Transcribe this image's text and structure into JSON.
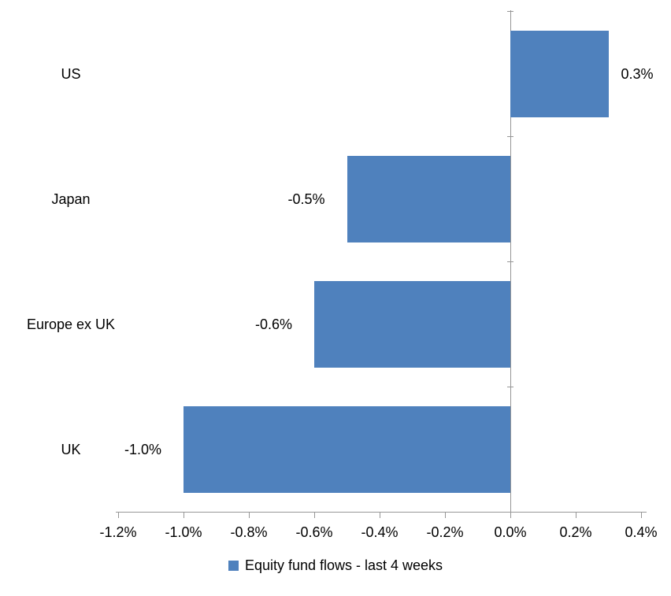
{
  "chart_data": {
    "type": "bar",
    "orientation": "horizontal",
    "title": "",
    "categories": [
      "US",
      "Japan",
      "Europe ex UK",
      "UK"
    ],
    "series": [
      {
        "name": "Equity fund flows - last 4 weeks",
        "values": [
          0.3,
          -0.5,
          -0.6,
          -1.0
        ],
        "value_labels": [
          "0.3%",
          "-0.5%",
          "-0.6%",
          "-1.0%"
        ]
      }
    ],
    "xlabel": "",
    "ylabel": "",
    "xlim": [
      -1.2,
      0.4
    ],
    "xticks": {
      "values": [
        -1.2,
        -1.0,
        -0.8,
        -0.6,
        -0.4,
        -0.2,
        0.0,
        0.2,
        0.4
      ],
      "labels": [
        "-1.2%",
        "-1.0%",
        "-0.8%",
        "-0.6%",
        "-0.4%",
        "-0.2%",
        "0.0%",
        "0.2%",
        "0.4%"
      ]
    },
    "grid": false,
    "legend": {
      "position": "bottom",
      "entries": [
        "Equity fund flows - last 4 weeks"
      ]
    },
    "colors": {
      "bar": "#4f81bd",
      "axis": "#969696",
      "text": "#000000",
      "background": "#ffffff"
    }
  }
}
